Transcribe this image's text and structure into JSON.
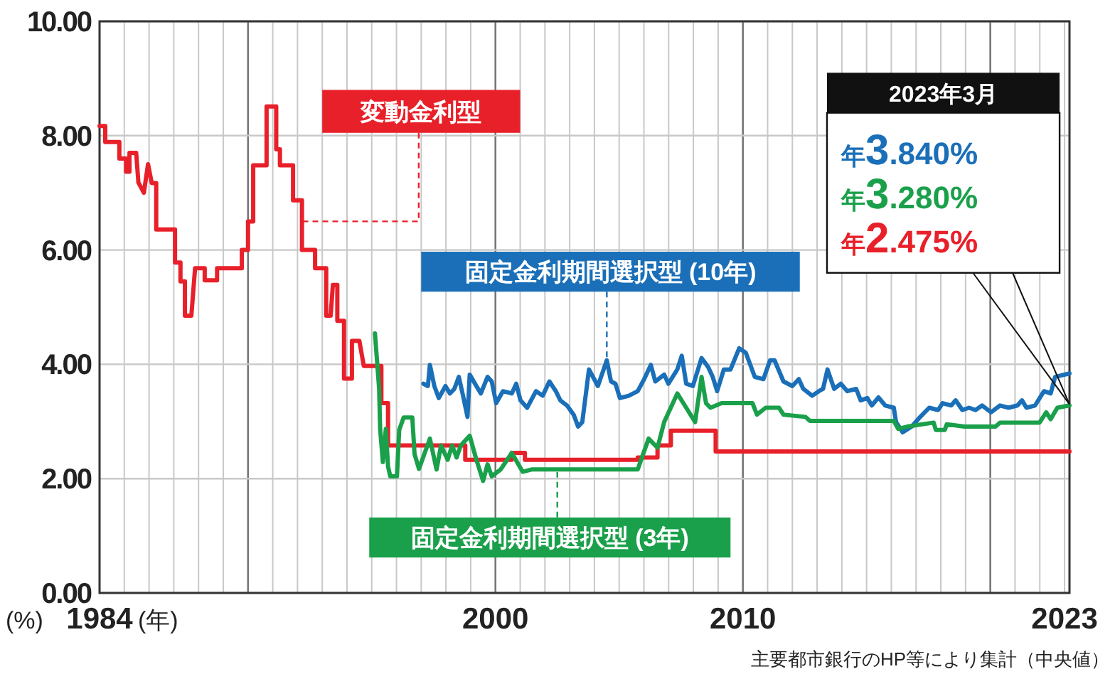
{
  "chart_data": {
    "type": "line",
    "xlabel": "(年)",
    "ylabel": "(%)",
    "xlim": [
      1984,
      2023.2
    ],
    "ylim": [
      0,
      10
    ],
    "xticks": [
      {
        "value": 1984,
        "label": "1984"
      },
      {
        "value": 1985,
        "label": null
      },
      {
        "value": 1986,
        "label": null
      },
      {
        "value": 1987,
        "label": null
      },
      {
        "value": 1988,
        "label": null
      },
      {
        "value": 1989,
        "label": null
      },
      {
        "value": 1990,
        "label": null
      },
      {
        "value": 1991,
        "label": null
      },
      {
        "value": 1992,
        "label": null
      },
      {
        "value": 1993,
        "label": null
      },
      {
        "value": 1994,
        "label": null
      },
      {
        "value": 1995,
        "label": null
      },
      {
        "value": 1996,
        "label": null
      },
      {
        "value": 1997,
        "label": null
      },
      {
        "value": 1998,
        "label": null
      },
      {
        "value": 1999,
        "label": null
      },
      {
        "value": 2000,
        "label": "2000"
      },
      {
        "value": 2001,
        "label": null
      },
      {
        "value": 2002,
        "label": null
      },
      {
        "value": 2003,
        "label": null
      },
      {
        "value": 2004,
        "label": null
      },
      {
        "value": 2005,
        "label": null
      },
      {
        "value": 2006,
        "label": null
      },
      {
        "value": 2007,
        "label": null
      },
      {
        "value": 2008,
        "label": null
      },
      {
        "value": 2009,
        "label": null
      },
      {
        "value": 2010,
        "label": "2010"
      },
      {
        "value": 2011,
        "label": null
      },
      {
        "value": 2012,
        "label": null
      },
      {
        "value": 2013,
        "label": null
      },
      {
        "value": 2014,
        "label": null
      },
      {
        "value": 2015,
        "label": null
      },
      {
        "value": 2016,
        "label": null
      },
      {
        "value": 2017,
        "label": null
      },
      {
        "value": 2018,
        "label": null
      },
      {
        "value": 2019,
        "label": null
      },
      {
        "value": 2020,
        "label": null
      },
      {
        "value": 2021,
        "label": null
      },
      {
        "value": 2022,
        "label": null
      },
      {
        "value": 2023,
        "label": "2023"
      }
    ],
    "yticks": [
      {
        "value": 0,
        "label": "0.00"
      },
      {
        "value": 2,
        "label": "2.00"
      },
      {
        "value": 4,
        "label": "4.00"
      },
      {
        "value": 6,
        "label": "6.00"
      },
      {
        "value": 8,
        "label": "8.00"
      },
      {
        "value": 10,
        "label": "10.00"
      }
    ],
    "grid": true,
    "series": [
      {
        "name": "変動金利型",
        "color": "#e8202a",
        "x": [
          1984.0,
          1984.23,
          1984.23,
          1984.8,
          1984.8,
          1985.07,
          1985.07,
          1985.21,
          1985.21,
          1985.48,
          1985.57,
          1985.79,
          1985.96,
          1986.11,
          1986.29,
          1986.29,
          1987.05,
          1987.05,
          1987.27,
          1987.27,
          1987.45,
          1987.45,
          1987.71,
          1987.86,
          1988.25,
          1988.25,
          1988.75,
          1988.75,
          1989.75,
          1989.75,
          1990.0,
          1990.0,
          1990.21,
          1990.21,
          1990.75,
          1990.75,
          1991.14,
          1991.14,
          1991.29,
          1991.29,
          1991.82,
          1991.82,
          1992.18,
          1992.18,
          1992.71,
          1992.71,
          1993.16,
          1993.16,
          1993.34,
          1993.43,
          1993.61,
          1993.61,
          1993.88,
          1993.88,
          1994.2,
          1994.2,
          1994.5,
          1994.68,
          1995.39,
          1995.39,
          1995.66,
          1995.66,
          1998.78,
          1998.78,
          2000.66,
          2000.66,
          2001.19,
          2001.19,
          2005.75,
          2005.75,
          2006.55,
          2006.55,
          2007.09,
          2007.09,
          2008.9,
          2008.9,
          2023.2
        ],
        "values": [
          8.17,
          8.17,
          7.89,
          7.89,
          7.6,
          7.6,
          7.37,
          7.37,
          7.7,
          7.7,
          7.18,
          7.0,
          7.5,
          7.17,
          7.17,
          6.36,
          6.36,
          5.78,
          5.78,
          5.45,
          5.45,
          4.85,
          4.85,
          5.68,
          5.68,
          5.47,
          5.47,
          5.68,
          5.68,
          6.0,
          6.0,
          6.5,
          6.5,
          7.48,
          7.48,
          8.51,
          8.51,
          7.76,
          7.76,
          7.48,
          7.48,
          6.87,
          6.87,
          6.0,
          6.0,
          5.68,
          5.68,
          4.85,
          4.85,
          5.39,
          5.39,
          4.76,
          4.76,
          3.75,
          3.75,
          4.41,
          4.41,
          3.97,
          3.97,
          3.32,
          3.32,
          2.58,
          2.58,
          2.33,
          2.33,
          2.45,
          2.45,
          2.33,
          2.33,
          2.37,
          2.37,
          2.58,
          2.58,
          2.84,
          2.84,
          2.475,
          2.475
        ]
      },
      {
        "name": "固定金利期間選択型 (10年)",
        "color": "#1a6fb8",
        "x": [
          1997.09,
          1997.27,
          1997.35,
          1997.53,
          1997.71,
          1997.98,
          1998.16,
          1998.34,
          1998.52,
          1998.69,
          1998.87,
          1998.96,
          1999.23,
          1999.41,
          1999.68,
          1999.85,
          2000.03,
          2000.3,
          2000.66,
          2000.84,
          2001.01,
          2001.28,
          2001.64,
          2001.91,
          2002.18,
          2002.44,
          2002.62,
          2002.89,
          2003.16,
          2003.34,
          2003.51,
          2003.78,
          2004.14,
          2004.5,
          2004.67,
          2004.85,
          2005.03,
          2005.39,
          2005.75,
          2006.01,
          2006.28,
          2006.46,
          2006.82,
          2006.99,
          2007.35,
          2007.53,
          2007.71,
          2007.98,
          2008.33,
          2008.6,
          2008.78,
          2008.96,
          2009.23,
          2009.5,
          2009.85,
          2010.12,
          2010.48,
          2010.83,
          2011.1,
          2011.28,
          2011.64,
          2012.0,
          2012.26,
          2012.44,
          2012.8,
          2013.07,
          2013.24,
          2013.42,
          2013.69,
          2013.96,
          2014.22,
          2014.58,
          2014.76,
          2015.03,
          2015.21,
          2015.48,
          2015.75,
          2016.1,
          2016.19,
          2016.46,
          2016.82,
          2017.17,
          2017.53,
          2017.89,
          2018.07,
          2018.42,
          2018.6,
          2018.87,
          2019.14,
          2019.4,
          2019.67,
          2020.03,
          2020.39,
          2020.74,
          2021.1,
          2021.28,
          2021.46,
          2021.81,
          2022.17,
          2022.44,
          2022.62,
          2023.2
        ],
        "values": [
          3.66,
          3.62,
          3.99,
          3.62,
          3.41,
          3.62,
          3.49,
          3.57,
          3.78,
          3.45,
          3.08,
          3.82,
          3.62,
          3.49,
          3.78,
          3.7,
          3.32,
          3.53,
          3.49,
          3.66,
          3.37,
          3.24,
          3.53,
          3.45,
          3.7,
          3.53,
          3.37,
          3.28,
          3.12,
          2.91,
          2.99,
          3.91,
          3.62,
          4.07,
          3.7,
          3.66,
          3.41,
          3.45,
          3.53,
          3.74,
          3.99,
          3.7,
          3.82,
          3.66,
          3.91,
          4.15,
          3.66,
          3.62,
          4.11,
          3.95,
          3.78,
          3.53,
          3.91,
          3.91,
          4.28,
          4.2,
          3.78,
          3.74,
          4.07,
          4.07,
          3.7,
          3.62,
          3.74,
          3.57,
          3.45,
          3.53,
          3.57,
          3.91,
          3.57,
          3.66,
          3.53,
          3.57,
          3.37,
          3.41,
          3.28,
          3.42,
          3.28,
          3.24,
          2.99,
          2.81,
          2.91,
          3.08,
          3.24,
          3.2,
          3.32,
          3.28,
          3.37,
          3.2,
          3.24,
          3.2,
          3.28,
          3.16,
          3.28,
          3.24,
          3.28,
          3.37,
          3.24,
          3.28,
          3.53,
          3.49,
          3.78,
          3.84
        ]
      },
      {
        "name": "固定金利期間選択型 (3年)",
        "color": "#1aa04a",
        "x": [
          1995.13,
          1995.3,
          1995.34,
          1995.45,
          1995.57,
          1995.66,
          1995.75,
          1996.02,
          1996.11,
          1996.29,
          1996.64,
          1996.73,
          1996.91,
          1997.35,
          1997.62,
          1997.8,
          1998.07,
          1998.25,
          1998.43,
          1998.6,
          1998.96,
          1999.23,
          1999.5,
          1999.68,
          1999.85,
          2000.21,
          2000.66,
          2001.1,
          2001.46,
          2005.75,
          2006.19,
          2006.55,
          2006.82,
          2007.35,
          2007.71,
          2008.07,
          2008.33,
          2008.51,
          2008.69,
          2009.14,
          2010.39,
          2010.57,
          2010.92,
          2011.46,
          2011.64,
          2012.53,
          2012.71,
          2016.1,
          2016.28,
          2016.64,
          2017.71,
          2017.8,
          2018.16,
          2018.24,
          2018.96,
          2020.21,
          2020.39,
          2021.99,
          2022.26,
          2022.44,
          2022.71,
          2023.2
        ],
        "values": [
          4.54,
          3.57,
          2.87,
          2.29,
          2.87,
          2.21,
          2.04,
          2.04,
          2.85,
          3.07,
          3.07,
          2.43,
          2.17,
          2.7,
          2.16,
          2.58,
          2.33,
          2.58,
          2.37,
          2.58,
          2.75,
          2.33,
          1.96,
          2.25,
          2.04,
          2.16,
          2.45,
          2.12,
          2.16,
          2.16,
          2.7,
          2.54,
          2.99,
          3.49,
          3.24,
          2.99,
          3.78,
          3.32,
          3.24,
          3.32,
          3.32,
          3.12,
          3.24,
          3.24,
          3.12,
          3.08,
          3.01,
          3.01,
          2.87,
          2.91,
          2.98,
          2.85,
          2.85,
          2.95,
          2.91,
          2.91,
          2.98,
          2.98,
          3.16,
          3.04,
          3.24,
          3.28
        ]
      }
    ],
    "annotations": [
      "2023年3月",
      "年3.840%",
      "年3.280%",
      {
        "text": "年2.475%",
        "x": 2023.2,
        "y": 3.3
      },
      "主要都市銀行のHP等により集計（中央値）"
    ]
  }
}
